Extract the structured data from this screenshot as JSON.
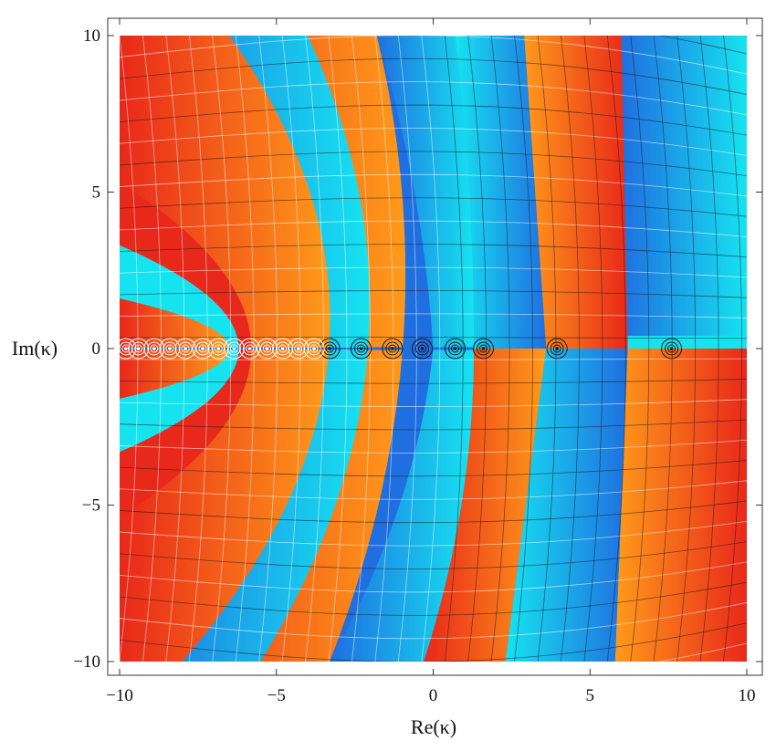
{
  "chart_data": {
    "type": "heatmap",
    "title": "",
    "xlabel": "Re(κ)",
    "ylabel": "Im(κ)",
    "xlim": [
      -10,
      10
    ],
    "ylim": [
      -10,
      10
    ],
    "x_ticks": [
      -10,
      -5,
      0,
      5,
      10
    ],
    "y_ticks": [
      -10,
      -5,
      0,
      5,
      10
    ],
    "x_tick_labels": [
      "−10",
      "−5",
      "0",
      "5",
      "10"
    ],
    "y_tick_labels": [
      "−10",
      "−5",
      "0",
      "5",
      "10"
    ],
    "grid": false,
    "legend": "none",
    "description_of_encoding": "domain coloring: hue bands encode phase, contour lines mark level sets",
    "colors": {
      "red": "#e8281a",
      "orange": "#ff9a1a",
      "blue": "#1f6fe0",
      "cyan": "#16e3f0",
      "frame": "#333333",
      "contour_dark": "#1a1a1a",
      "contour_light": "#ffffff"
    },
    "marked_points": [
      {
        "x": 7.6,
        "y": 0,
        "contour": "dark"
      },
      {
        "x": 3.95,
        "y": 0,
        "contour": "dark"
      },
      {
        "x": 1.6,
        "y": 0,
        "contour": "dark"
      },
      {
        "x": 0.7,
        "y": 0,
        "contour": "dark"
      },
      {
        "x": -0.35,
        "y": 0,
        "contour": "dark"
      },
      {
        "x": -1.3,
        "y": 0,
        "contour": "dark"
      },
      {
        "x": -2.3,
        "y": 0,
        "contour": "dark"
      },
      {
        "x": -3.3,
        "y": 0,
        "contour": "dark"
      },
      {
        "x": -3.8,
        "y": 0,
        "contour": "light"
      },
      {
        "x": -4.3,
        "y": 0,
        "contour": "light"
      },
      {
        "x": -4.8,
        "y": 0,
        "contour": "light"
      },
      {
        "x": -5.3,
        "y": 0,
        "contour": "light"
      },
      {
        "x": -5.85,
        "y": 0,
        "contour": "light"
      },
      {
        "x": -6.35,
        "y": 0,
        "contour": "light"
      },
      {
        "x": -6.85,
        "y": 0,
        "contour": "light"
      },
      {
        "x": -7.35,
        "y": 0,
        "contour": "light"
      },
      {
        "x": -7.9,
        "y": 0,
        "contour": "light"
      },
      {
        "x": -8.4,
        "y": 0,
        "contour": "light"
      },
      {
        "x": -8.9,
        "y": 0,
        "contour": "light"
      },
      {
        "x": -9.4,
        "y": 0,
        "contour": "light"
      },
      {
        "x": -9.8,
        "y": 0,
        "contour": "light"
      }
    ]
  }
}
